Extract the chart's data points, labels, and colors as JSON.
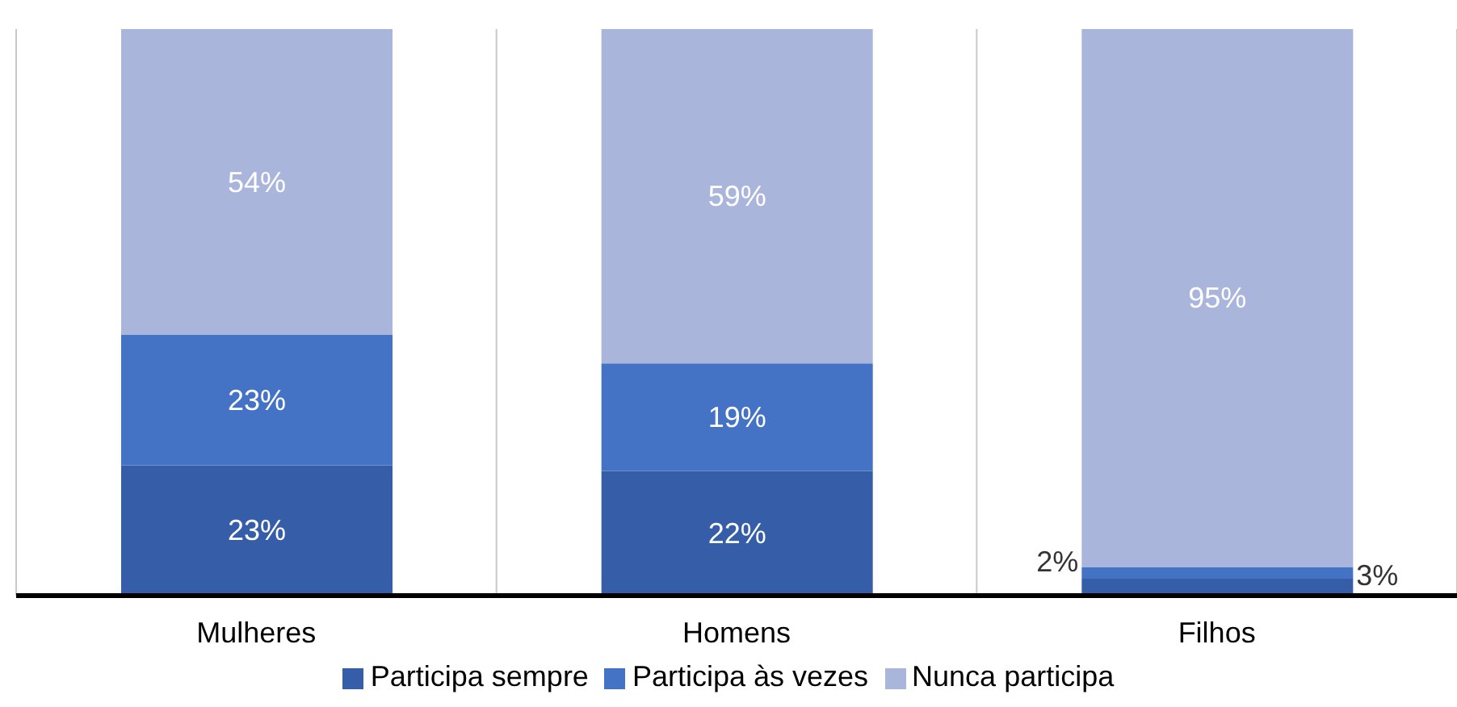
{
  "chart_data": {
    "type": "bar",
    "stacked": true,
    "categories": [
      "Mulheres",
      "Homens",
      "Filhos"
    ],
    "series": [
      {
        "name": "Participa sempre",
        "color": "#365ea8",
        "values": [
          23,
          22,
          3
        ],
        "value_labels": [
          "23%",
          "22%",
          "3%"
        ]
      },
      {
        "name": "Participa às vezes",
        "color": "#4472c4",
        "values": [
          23,
          19,
          2
        ],
        "value_labels": [
          "23%",
          "19%",
          "2%"
        ]
      },
      {
        "name": "Nunca participa",
        "color": "#a9b5db",
        "values": [
          54,
          59,
          95
        ],
        "value_labels": [
          "54%",
          "59%",
          "95%"
        ]
      }
    ],
    "grid": "x",
    "legend": "bottom"
  }
}
